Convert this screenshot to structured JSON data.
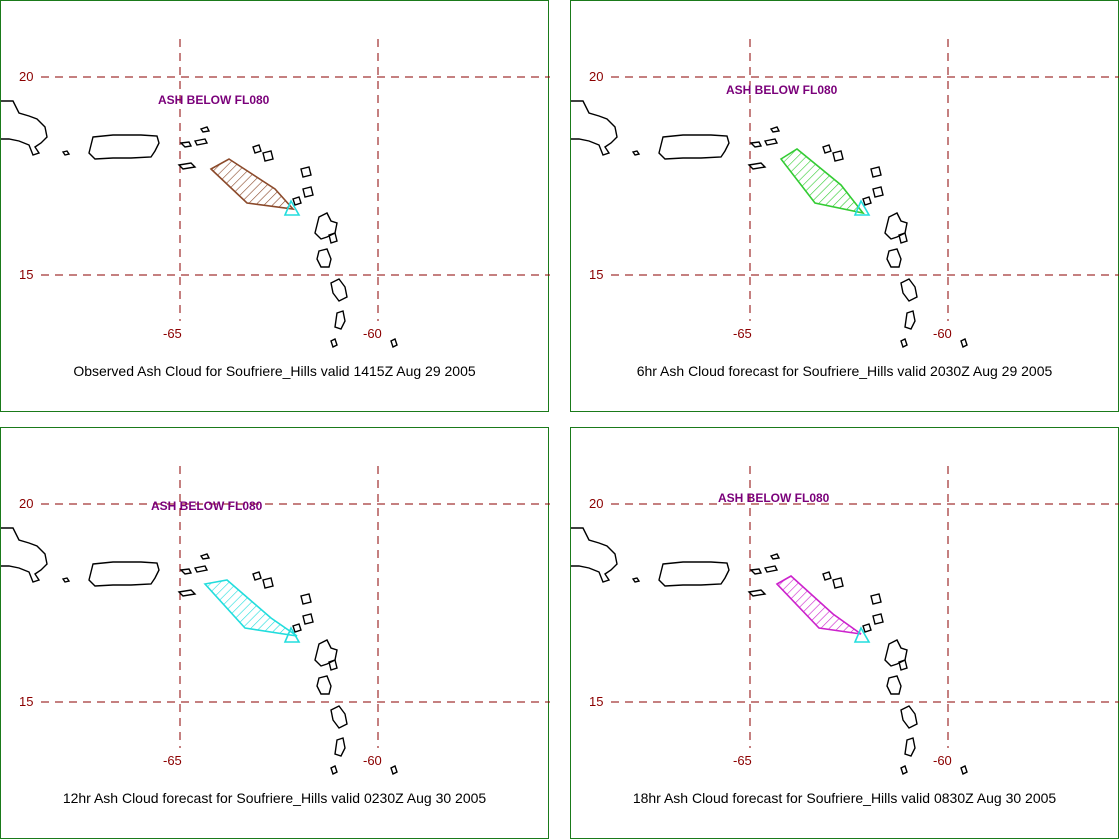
{
  "grid": {
    "line_color": "#8b0000",
    "lat_labels": [
      "20",
      "15"
    ],
    "lon_labels": [
      "-65",
      "-60"
    ]
  },
  "panels": [
    {
      "caption": "Observed Ash Cloud for Soufriere_Hills valid 1415Z Aug 29 2005",
      "ash_label": "ASH BELOW FL080",
      "cloud_color": "#8b4a2b",
      "forecast_hr": 0
    },
    {
      "caption": "6hr Ash Cloud forecast for Soufriere_Hills valid 2030Z Aug 29 2005",
      "ash_label": "ASH BELOW FL080",
      "cloud_color": "#33cc33",
      "forecast_hr": 6
    },
    {
      "caption": "12hr Ash Cloud forecast for Soufriere_Hills valid 0230Z Aug 30 2005",
      "ash_label": "ASH BELOW FL080",
      "cloud_color": "#22dddd",
      "forecast_hr": 12
    },
    {
      "caption": "18hr Ash Cloud forecast for Soufriere_Hills valid 0830Z Aug 30 2005",
      "ash_label": "ASH BELOW FL080",
      "cloud_color": "#cc22cc",
      "forecast_hr": 18
    }
  ],
  "volcano_marker_color": "#22dddd"
}
